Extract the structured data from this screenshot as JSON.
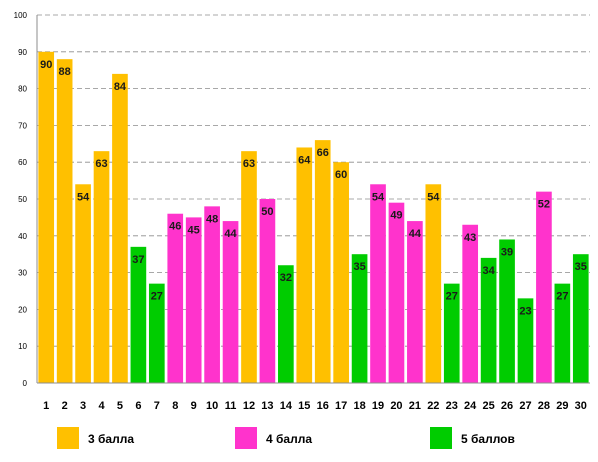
{
  "chart_data": {
    "type": "bar",
    "title": "",
    "xlabel": "",
    "ylabel": "",
    "ylim": [
      0,
      100
    ],
    "yticks": [
      0,
      10,
      20,
      30,
      40,
      50,
      60,
      70,
      80,
      90,
      100
    ],
    "grid": true,
    "legend_position": "bottom",
    "categories": [
      "1",
      "2",
      "3",
      "4",
      "5",
      "6",
      "7",
      "8",
      "9",
      "10",
      "11",
      "12",
      "13",
      "14",
      "15",
      "16",
      "17",
      "18",
      "19",
      "20",
      "21",
      "22",
      "23",
      "24",
      "25",
      "26",
      "27",
      "28",
      "29",
      "30"
    ],
    "values": [
      90,
      88,
      54,
      63,
      84,
      37,
      27,
      46,
      45,
      48,
      44,
      63,
      50,
      32,
      64,
      66,
      60,
      35,
      54,
      49,
      44,
      54,
      27,
      43,
      34,
      39,
      23,
      52,
      27,
      35
    ],
    "groups": [
      0,
      0,
      0,
      0,
      0,
      2,
      2,
      1,
      1,
      1,
      1,
      0,
      1,
      2,
      0,
      0,
      0,
      2,
      1,
      1,
      1,
      0,
      2,
      1,
      2,
      2,
      2,
      1,
      2,
      2
    ],
    "legend": [
      {
        "name": "3 балла",
        "color": "#FFC000"
      },
      {
        "name": "4 балла",
        "color": "#FF33CC"
      },
      {
        "name": "5 баллов",
        "color": "#00CC00"
      }
    ]
  }
}
